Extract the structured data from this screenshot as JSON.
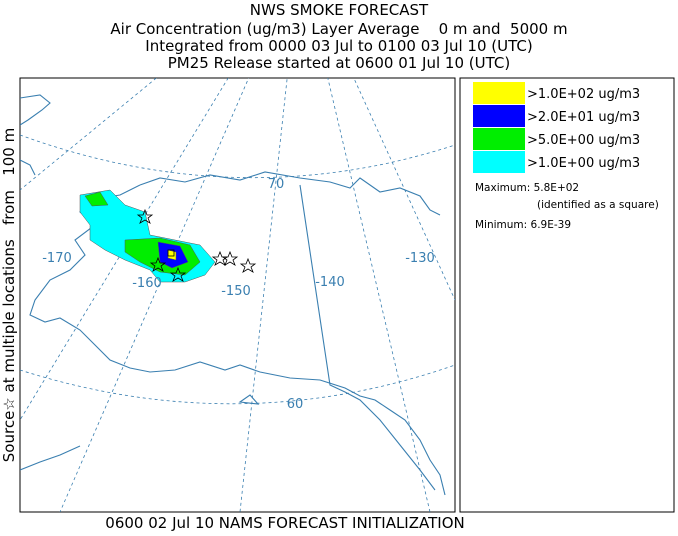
{
  "header": {
    "title": "NWS SMOKE FORECAST",
    "lines": [
      "Air Concentration (ug/m3) Layer Average    0 m and  5000 m",
      "Integrated from 0000 03 Jul to 0100 03 Jul 10 (UTC)",
      "PM25 Release started at 0600 01 Jul 10 (UTC)"
    ]
  },
  "side_label": "Source☆ at multiple locations   from   100 m",
  "map_labels": {
    "lon": [
      "-170",
      "-160",
      "-150",
      "-140",
      "-130"
    ],
    "lat": [
      "70",
      "60"
    ]
  },
  "legend": {
    "entries": [
      {
        "label": ">1.0E+02 ug/m3",
        "color": "#ffff00"
      },
      {
        "label": ">2.0E+01 ug/m3",
        "color": "#0000ff"
      },
      {
        "label": ">5.0E+00 ug/m3",
        "color": "#00ee00"
      },
      {
        "label": ">1.0E+00 ug/m3",
        "color": "#00ffff"
      }
    ],
    "maximum": "Maximum: 5.8E+02",
    "maximum_note": "(identified as a square)",
    "minimum": "Minimum: 6.9E-39"
  },
  "footer": "0600 02 Jul 10 NAMS FORECAST INITIALIZATION"
}
